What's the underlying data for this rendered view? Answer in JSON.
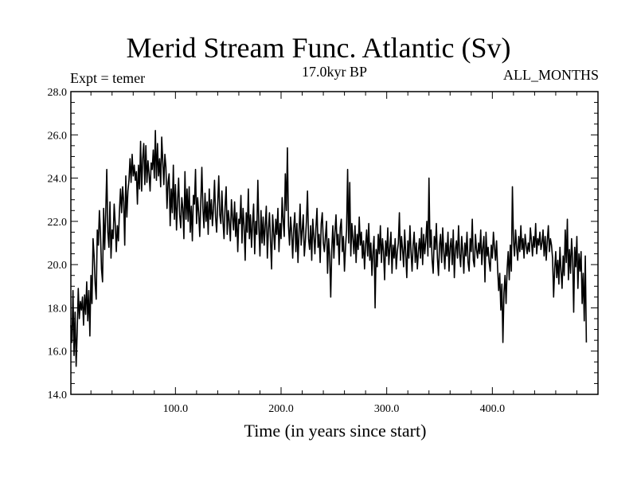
{
  "chart_data": {
    "type": "line",
    "title": "Merid Stream Func. Atlantic (Sv)",
    "subtitle_left": "Expt = temer",
    "subtitle_center": "17.0kyr BP",
    "subtitle_right": "ALL_MONTHS",
    "xlabel": "Time (in years since start)",
    "ylabel": "",
    "xlim": [
      1,
      500
    ],
    "ylim": [
      14,
      28
    ],
    "xticks": [
      100,
      200,
      300,
      400
    ],
    "xtick_labels": [
      "100.0",
      "200.0",
      "300.0",
      "400.0"
    ],
    "yticks": [
      14,
      16,
      18,
      20,
      22,
      24,
      26,
      28
    ],
    "ytick_labels": [
      "14.0",
      "16.0",
      "18.0",
      "20.0",
      "22.0",
      "24.0",
      "26.0",
      "28.0"
    ],
    "grid": false,
    "series": [
      {
        "name": "Merid Stream Func. Atlantic",
        "x_start": 1,
        "x_step": 1,
        "values": [
          17.2,
          16.4,
          18.8,
          15.8,
          17.8,
          15.3,
          16.9,
          18.9,
          17.5,
          18.3,
          17.9,
          18.5,
          17.2,
          18.6,
          17.7,
          19.2,
          17.4,
          18.8,
          16.7,
          19.5,
          18.2,
          21.2,
          20.4,
          19.1,
          18.4,
          21.6,
          20.9,
          22.5,
          21.5,
          19.8,
          19.2,
          22.6,
          20.7,
          22.4,
          24.4,
          21.5,
          20.8,
          22.9,
          20.3,
          21.6,
          21.2,
          22.8,
          21.9,
          20.6,
          21.8,
          21.1,
          22.5,
          23.5,
          22.4,
          23.6,
          22.9,
          20.9,
          24.1,
          22.2,
          23.4,
          23.9,
          24.9,
          23.8,
          25.1,
          24.1,
          24.6,
          23.9,
          24.3,
          22.8,
          24.6,
          23.5,
          25.7,
          23.4,
          24.9,
          25.6,
          23.7,
          25.5,
          23.8,
          24.8,
          24.2,
          23.4,
          24.7,
          24.4,
          25.3,
          24.0,
          26.2,
          23.9,
          25.6,
          24.1,
          24.9,
          23.6,
          25.9,
          24.8,
          23.7,
          25.1,
          24.5,
          22.6,
          23.8,
          24.2,
          21.8,
          23.5,
          22.4,
          24.6,
          22.1,
          23.7,
          21.6,
          22.9,
          24.0,
          22.3,
          21.7,
          23.1,
          22.6,
          21.2,
          24.3,
          22.1,
          23.5,
          22.0,
          23.6,
          21.5,
          22.7,
          21.1,
          23.2,
          22.8,
          24.4,
          21.9,
          23.1,
          22.4,
          21.3,
          22.9,
          24.5,
          22.6,
          21.7,
          23.3,
          22.0,
          22.9,
          21.4,
          23.5,
          22.1,
          23.0,
          21.8,
          22.6,
          23.9,
          22.2,
          21.5,
          22.8,
          24.1,
          22.3,
          21.9,
          23.4,
          22.0,
          21.2,
          22.7,
          23.6,
          21.4,
          22.5,
          22.0,
          21.1,
          23.0,
          22.2,
          21.6,
          22.9,
          21.3,
          22.4,
          20.6,
          22.1,
          21.9,
          23.2,
          21.0,
          22.6,
          21.8,
          20.2,
          22.4,
          21.5,
          23.5,
          21.2,
          22.3,
          20.8,
          21.9,
          22.8,
          20.5,
          22.0,
          21.4,
          23.9,
          21.7,
          20.4,
          22.5,
          21.0,
          22.2,
          20.9,
          21.8,
          22.7,
          20.3,
          21.6,
          22.4,
          21.1,
          19.8,
          22.3,
          21.5,
          20.7,
          22.1,
          21.4,
          22.6,
          20.6,
          21.9,
          21.2,
          23.1,
          22.0,
          21.3,
          24.2,
          22.5,
          25.4,
          21.8,
          20.9,
          22.2,
          21.5,
          20.3,
          21.7,
          22.4,
          20.6,
          21.9,
          20.1,
          21.5,
          22.8,
          20.9,
          21.6,
          22.3,
          20.4,
          21.1,
          22.0,
          23.4,
          21.2,
          20.7,
          21.8,
          20.2,
          22.1,
          21.3,
          20.5,
          21.7,
          22.6,
          20.8,
          21.4,
          20.1,
          21.9,
          22.4,
          21.0,
          20.6,
          21.3,
          22.0,
          19.6,
          21.2,
          20.4,
          18.5,
          20.7,
          21.8,
          20.3,
          21.5,
          22.3,
          20.9,
          21.4,
          20.0,
          21.7,
          22.1,
          20.6,
          21.3,
          19.7,
          20.8,
          21.6,
          24.4,
          21.0,
          23.8,
          20.4,
          21.9,
          21.2,
          20.5,
          21.8,
          20.1,
          21.4,
          20.7,
          22.2,
          20.9,
          21.5,
          20.3,
          21.1,
          19.8,
          20.9,
          21.6,
          20.4,
          21.9,
          20.2,
          21.0,
          19.5,
          20.6,
          21.3,
          18.0,
          20.7,
          19.9,
          21.4,
          20.5,
          21.8,
          20.1,
          21.2,
          20.6,
          19.3,
          21.1,
          20.4,
          21.7,
          20.0,
          20.8,
          21.5,
          19.6,
          20.9,
          20.3,
          21.2,
          19.8,
          20.6,
          21.0,
          22.4,
          20.2,
          21.3,
          20.7,
          19.9,
          21.6,
          20.5,
          19.4,
          21.1,
          20.3,
          21.8,
          20.6,
          19.7,
          20.9,
          21.5,
          20.1,
          21.0,
          19.8,
          20.6,
          21.2,
          20.3,
          21.7,
          20.0,
          21.4,
          20.5,
          21.1,
          22.0,
          20.4,
          24.0,
          20.8,
          21.6,
          20.2,
          19.6,
          21.3,
          20.7,
          21.9,
          20.3,
          19.5,
          20.9,
          21.4,
          20.1,
          21.7,
          20.6,
          19.8,
          21.0,
          20.4,
          21.5,
          19.7,
          20.8,
          21.2,
          20.0,
          21.6,
          19.4,
          20.7,
          21.1,
          20.3,
          21.8,
          20.5,
          19.9,
          21.3,
          20.6,
          19.6,
          21.0,
          20.4,
          21.5,
          20.1,
          19.7,
          21.2,
          20.6,
          22.1,
          20.2,
          19.9,
          21.4,
          20.7,
          20.3,
          21.0,
          20.5,
          21.6,
          20.0,
          20.8,
          21.3,
          19.2,
          21.5,
          20.4,
          20.8,
          20.1,
          19.7,
          20.9,
          20.3,
          21.5,
          20.8,
          20.2,
          21.1,
          19.8,
          18.8,
          19.6,
          17.9,
          19.1,
          16.4,
          18.7,
          19.5,
          18.2,
          19.8,
          20.6,
          19.3,
          20.9,
          19.7,
          23.6,
          21.1,
          20.4,
          21.6,
          20.8,
          20.2,
          21.3,
          20.6,
          21.8,
          20.7,
          21.2,
          20.3,
          21.4,
          20.9,
          20.5,
          21.0,
          20.6,
          21.7,
          21.1,
          20.4,
          21.3,
          20.8,
          21.9,
          20.5,
          21.2,
          20.9,
          21.5,
          20.7,
          21.0,
          21.6,
          20.4,
          21.3,
          20.2,
          21.1,
          21.8,
          20.6,
          21.2,
          20.9,
          20.3,
          18.5,
          19.8,
          20.6,
          19.4,
          20.2,
          19.1,
          20.8,
          19.7,
          18.9,
          20.4,
          19.5,
          21.6,
          20.1,
          22.1,
          19.3,
          20.7,
          19.6,
          21.2,
          20.3,
          17.8,
          20.8,
          19.9,
          21.3,
          18.9,
          20.5,
          19.7,
          20.6,
          18.2,
          19.6,
          17.4,
          20.4,
          16.4
        ]
      }
    ]
  }
}
